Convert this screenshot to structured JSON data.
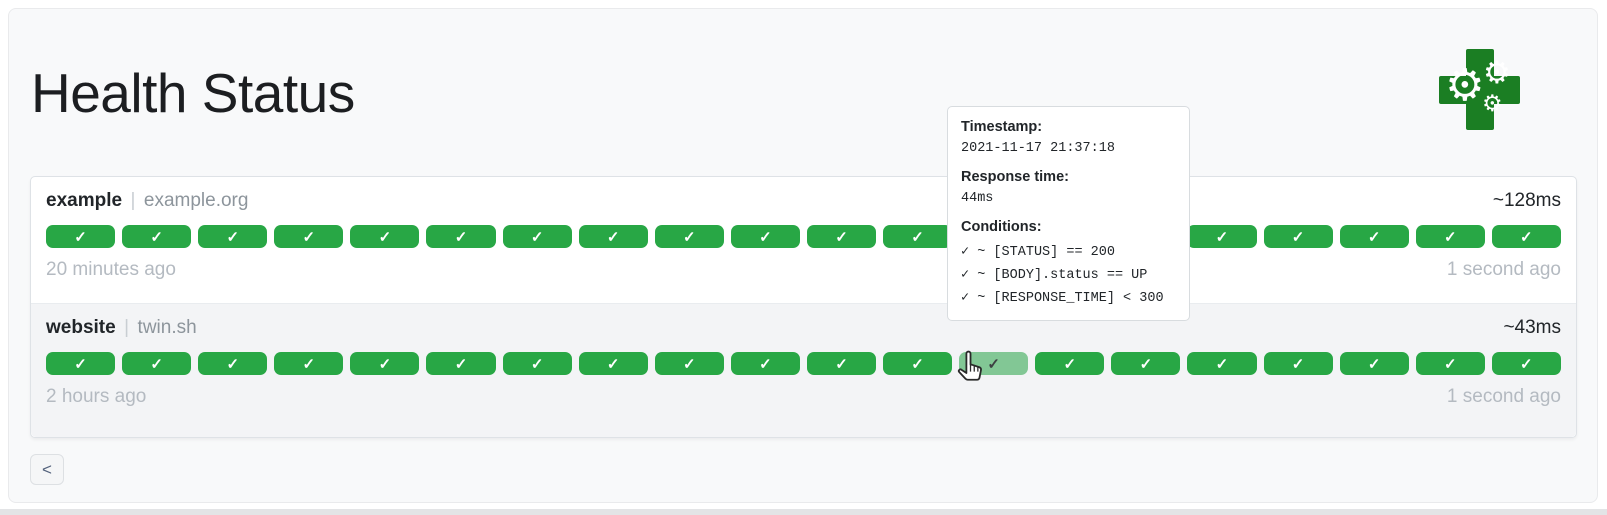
{
  "header": {
    "title": "Health Status"
  },
  "icons": {
    "check": "✓",
    "gear": "⚙",
    "previous_chevron": "<"
  },
  "services": [
    {
      "name": "example",
      "separator": "|",
      "host": "example.org",
      "avg_response": "~128ms",
      "oldest": "20 minutes ago",
      "newest": "1 second ago",
      "hovered_index": null,
      "results": [
        "up",
        "up",
        "up",
        "up",
        "up",
        "up",
        "up",
        "up",
        "up",
        "up",
        "up",
        "up",
        "up",
        "up",
        "up",
        "up",
        "up",
        "up",
        "up",
        "up"
      ]
    },
    {
      "name": "website",
      "separator": "|",
      "host": "twin.sh",
      "avg_response": "~43ms",
      "oldest": "2 hours ago",
      "newest": "1 second ago",
      "hovered_index": 12,
      "results": [
        "up",
        "up",
        "up",
        "up",
        "up",
        "up",
        "up",
        "up",
        "up",
        "up",
        "up",
        "up",
        "up",
        "up",
        "up",
        "up",
        "up",
        "up",
        "up",
        "up"
      ]
    }
  ],
  "tooltip": {
    "timestamp_label": "Timestamp:",
    "timestamp": "2021-11-17 21:37:18",
    "response_label": "Response time:",
    "response": "44ms",
    "conditions_label": "Conditions:",
    "conditions": [
      "✓ ~ [STATUS] == 200",
      "✓ ~ [BODY].status == UP",
      "✓ ~ [RESPONSE_TIME] < 300"
    ]
  },
  "colors": {
    "success": "#28a745",
    "success_hover": "#82c795",
    "logo_green": "#1b7e23"
  }
}
